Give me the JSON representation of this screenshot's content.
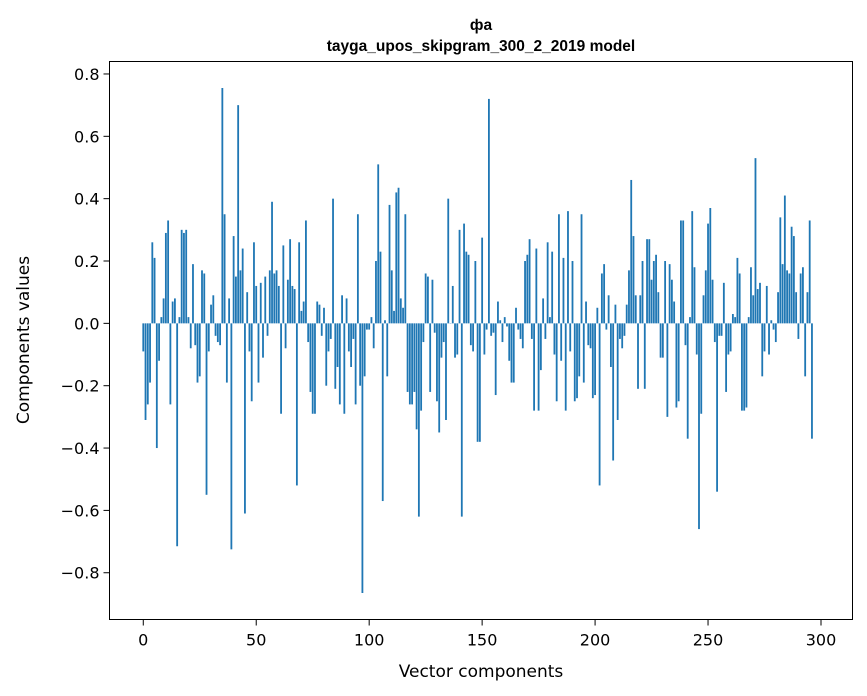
{
  "chart_data": {
    "type": "bar",
    "title": "фа",
    "subtitle": "tayga_upos_skipgram_300_2_2019 model",
    "xlabel": "Vector components",
    "ylabel": "Components values",
    "xlim": [
      -14.95,
      313.95
    ],
    "ylim": [
      -0.95,
      0.84
    ],
    "xticks": [
      0,
      50,
      100,
      150,
      200,
      250,
      300
    ],
    "xtick_labels": [
      "0",
      "50",
      "100",
      "150",
      "200",
      "250",
      "300"
    ],
    "yticks": [
      -0.8,
      -0.6,
      -0.4,
      -0.2,
      0.0,
      0.2,
      0.4,
      0.6,
      0.8
    ],
    "ytick_labels": [
      "−0.8",
      "−0.6",
      "−0.4",
      "−0.2",
      "0.0",
      "0.2",
      "0.4",
      "0.6",
      "0.8"
    ],
    "bar_color": "#1f77b4",
    "bar_width": 0.8,
    "values": [
      -0.09,
      -0.31,
      -0.26,
      -0.19,
      0.26,
      0.21,
      -0.4,
      -0.12,
      0.02,
      0.08,
      0.29,
      0.33,
      -0.26,
      0.07,
      0.08,
      -0.715,
      0.02,
      0.3,
      0.29,
      0.3,
      0.02,
      -0.08,
      0.19,
      -0.07,
      -0.19,
      -0.17,
      0.17,
      0.16,
      -0.55,
      -0.09,
      0.06,
      0.09,
      -0.04,
      -0.06,
      -0.07,
      0.755,
      0.35,
      -0.19,
      0.08,
      -0.725,
      0.28,
      0.15,
      0.7,
      0.17,
      0.24,
      -0.61,
      0.1,
      -0.09,
      -0.25,
      0.26,
      0.12,
      -0.19,
      0.13,
      -0.11,
      0.15,
      -0.04,
      0.17,
      0.39,
      0.16,
      0.17,
      0.12,
      -0.29,
      0.25,
      -0.08,
      0.14,
      0.27,
      0.12,
      0.11,
      -0.52,
      0.26,
      0.04,
      0.07,
      0.33,
      -0.06,
      -0.22,
      -0.29,
      -0.29,
      0.07,
      0.06,
      -0.04,
      0.05,
      -0.2,
      -0.09,
      -0.05,
      0.4,
      -0.21,
      -0.14,
      -0.26,
      0.09,
      -0.29,
      0.08,
      -0.09,
      -0.14,
      -0.05,
      -0.26,
      0.35,
      -0.2,
      -0.865,
      -0.17,
      -0.02,
      -0.02,
      0.02,
      -0.08,
      0.2,
      0.51,
      0.23,
      -0.57,
      0.01,
      -0.17,
      0.38,
      0.17,
      0.04,
      0.42,
      0.435,
      0.08,
      0.05,
      0.35,
      -0.22,
      -0.26,
      -0.26,
      -0.22,
      -0.34,
      -0.62,
      -0.28,
      -0.06,
      0.16,
      0.15,
      -0.22,
      0.14,
      -0.03,
      -0.25,
      -0.35,
      -0.11,
      -0.06,
      -0.31,
      0.4,
      0.0,
      0.12,
      -0.11,
      -0.1,
      0.3,
      -0.62,
      0.32,
      0.23,
      0.22,
      -0.07,
      -0.09,
      0.2,
      -0.38,
      -0.38,
      0.275,
      -0.1,
      -0.02,
      0.72,
      -0.04,
      -0.03,
      -0.23,
      0.07,
      0.01,
      -0.06,
      0.02,
      -0.01,
      -0.12,
      -0.19,
      -0.19,
      0.05,
      -0.02,
      -0.05,
      -0.08,
      0.2,
      0.22,
      0.27,
      -0.05,
      -0.28,
      0.24,
      -0.28,
      -0.15,
      0.08,
      -0.05,
      0.26,
      0.02,
      0.23,
      -0.1,
      -0.25,
      0.35,
      -0.12,
      0.21,
      -0.28,
      0.36,
      -0.09,
      0.2,
      -0.25,
      -0.24,
      -0.17,
      0.35,
      -0.19,
      0.07,
      -0.07,
      -0.08,
      -0.24,
      -0.23,
      0.05,
      -0.52,
      0.16,
      0.19,
      -0.02,
      0.09,
      -0.14,
      -0.44,
      0.06,
      -0.31,
      -0.05,
      -0.08,
      -0.04,
      0.06,
      0.17,
      0.46,
      0.28,
      0.09,
      -0.21,
      0.09,
      0.2,
      -0.21,
      0.27,
      0.27,
      0.14,
      0.2,
      0.22,
      0.1,
      -0.11,
      -0.11,
      0.2,
      -0.3,
      0.19,
      0.14,
      0.07,
      -0.27,
      -0.25,
      0.33,
      0.33,
      -0.07,
      -0.37,
      0.02,
      0.36,
      0.18,
      -0.1,
      -0.66,
      -0.29,
      0.09,
      0.17,
      0.32,
      0.37,
      0.14,
      -0.06,
      -0.54,
      -0.04,
      -0.04,
      0.13,
      -0.22,
      -0.1,
      -0.09,
      0.03,
      0.02,
      0.21,
      0.16,
      -0.28,
      -0.28,
      -0.27,
      0.02,
      0.18,
      0.09,
      0.53,
      0.11,
      0.13,
      -0.17,
      -0.09,
      0.12,
      -0.1,
      0.01,
      -0.02,
      -0.06,
      0.1,
      0.34,
      0.19,
      0.41,
      0.17,
      0.16,
      0.31,
      0.28,
      0.1,
      -0.05,
      0.16,
      0.18,
      -0.17,
      0.1,
      0.33,
      -0.37
    ]
  }
}
